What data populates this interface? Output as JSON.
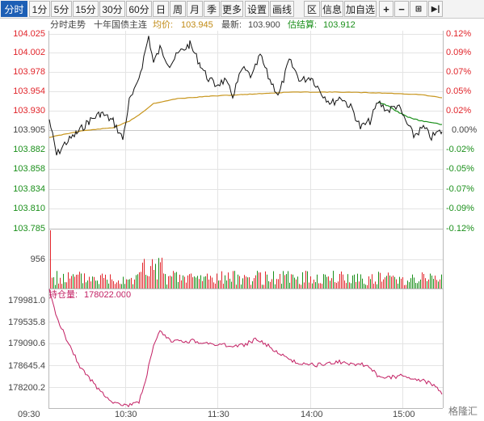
{
  "toolbar": {
    "periods": [
      "分时",
      "1分",
      "5分",
      "15分",
      "30分",
      "60分",
      "日",
      "周",
      "月",
      "季",
      "更多"
    ],
    "active_period": "分时",
    "tools": [
      "设置",
      "画线",
      "区",
      "信息",
      "加自选"
    ],
    "icons": [
      "plus-icon",
      "minus-icon",
      "split-panel-icon",
      "go-end-icon"
    ]
  },
  "header": {
    "mode": "分时走势",
    "instrument": "十年国债主连",
    "avg_label": "均价:",
    "avg_value": "103.945",
    "latest_label": "最新:",
    "latest_value": "103.900",
    "settle_label": "估结算:",
    "settle_value": "103.912"
  },
  "price_axis": {
    "left": [
      "104.025",
      "104.002",
      "103.978",
      "103.954",
      "103.930",
      "103.905",
      "103.882",
      "103.858",
      "103.834",
      "103.810",
      "103.785"
    ],
    "right": [
      "0.12%",
      "0.09%",
      "0.07%",
      "0.05%",
      "0.02%",
      "0.00%",
      "-0.02%",
      "-0.05%",
      "-0.07%",
      "-0.09%",
      "-0.12%"
    ]
  },
  "volume_axis": {
    "label": "956"
  },
  "oi_panel": {
    "title_label": "持仓量:",
    "title_value": "178022.000",
    "axis": [
      "179981.0",
      "179535.8",
      "179090.6",
      "178645.4",
      "178200.2"
    ]
  },
  "time_axis": [
    "09:30",
    "10:30",
    "11:30",
    "14:00",
    "15:00"
  ],
  "watermark": "格隆汇",
  "colors": {
    "price_line": "#111111",
    "avg_line": "#c8961e",
    "settle_line": "#1a8f1a",
    "oi_line": "#c21e62",
    "up": "#e1242a",
    "down": "#1a8f1a",
    "active_tab": "#1d5fb5"
  }
}
